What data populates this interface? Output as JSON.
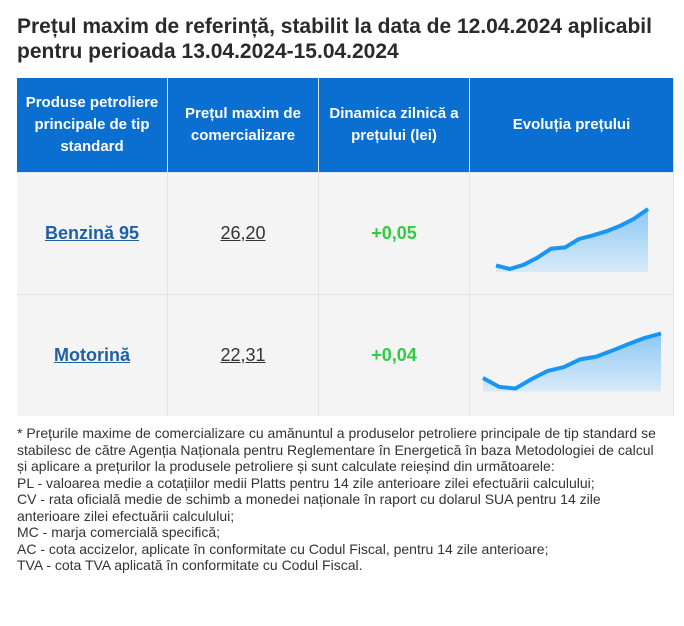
{
  "title": "Prețul maxim de referință, stabilit la data de 12.04.2024 aplicabil pentru perioada 13.04.2024-15.04.2024",
  "table": {
    "headers": [
      "Produse petroliere principale de tip standard",
      "Prețul maxim de comercializare",
      "Dinamica zilnică a prețului (lei)",
      "Evoluția prețului"
    ],
    "rows": [
      {
        "product": "Benzină 95",
        "price": "26,20",
        "delta": "+0,05",
        "trend": [
          6,
          0,
          7,
          19,
          34,
          36,
          50,
          56,
          63,
          72,
          84,
          100
        ]
      },
      {
        "product": "Motorină",
        "price": "22,31",
        "delta": "+0,04",
        "trend": [
          19,
          3,
          0,
          17,
          32,
          39,
          53,
          58,
          69,
          81,
          92,
          100
        ]
      }
    ]
  },
  "colors": {
    "header": "#0a6fd1",
    "link": "#1f5fa8",
    "positive": "#2ecc40",
    "line": "#1896f5"
  },
  "notes": [
    "* Prețurile maxime de comercializare cu amănuntul a produselor petroliere principale de tip standard se stabilesc de către Agenția Naționala pentru Reglementare în Energetică în baza Metodologiei de calcul și aplicare a prețurilor la produsele petroliere și sunt calculate reieșind din următoarele:",
    "PL - valoarea medie a cotațiilor medii Platts pentru 14 zile anterioare zilei efectuării calculului;",
    "CV - rata oficială medie de schimb a monedei naționale în raport cu dolarul SUA pentru 14 zile anterioare zilei efectuării calculului;",
    "MC - marja comercială specifică;",
    "AC - cota accizelor, aplicate în conformitate cu Codul Fiscal, pentru 14 zile anterioare;",
    "TVA - cota TVA aplicată în conformitate cu Codul Fiscal."
  ]
}
